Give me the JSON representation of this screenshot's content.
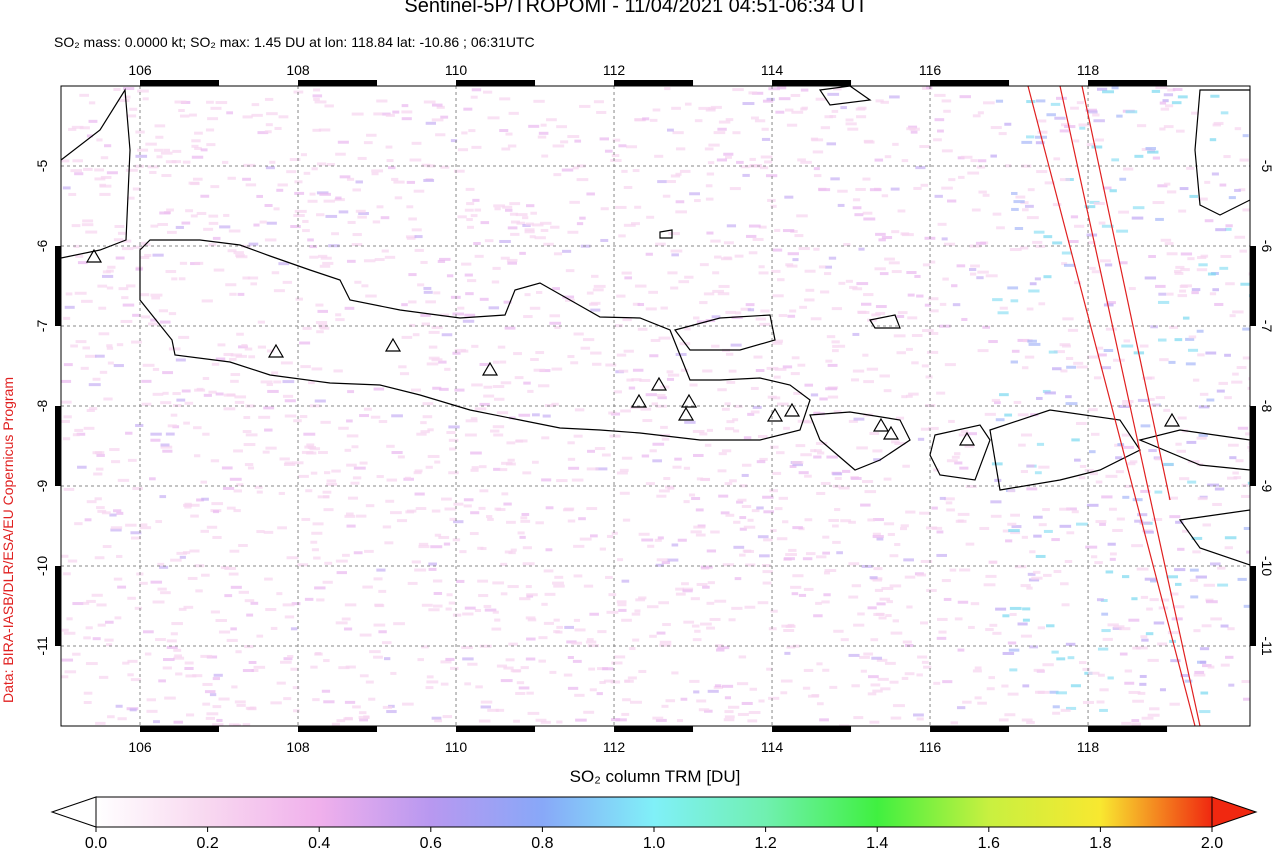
{
  "header": {
    "title": "Sentinel-5P/TROPOMI - 11/04/2021 04:51-06:34 UT",
    "subtitle": "SO₂ mass: 0.0000 kt; SO₂ max: 1.45 DU at lon: 118.84 lat: -10.86 ; 06:31UTC"
  },
  "credit": "Data: BIRA-IASB/DLR/ESA/EU Copernicus Program",
  "map": {
    "xlim": [
      105,
      120.05
    ],
    "ylim": [
      -12,
      -4
    ],
    "xticks": [
      106,
      108,
      110,
      112,
      114,
      116,
      118
    ],
    "yticks": [
      -5,
      -6,
      -7,
      -8,
      -9,
      -10,
      -11
    ]
  },
  "colorbar": {
    "label": "SO₂ column TRM [DU]",
    "lim": [
      0,
      2
    ],
    "ticks": [
      {
        "value": 0,
        "label": "0.0"
      },
      {
        "value": 0.2,
        "label": "0.2"
      },
      {
        "value": 0.4,
        "label": "0.4"
      },
      {
        "value": 0.6,
        "label": "0.6"
      },
      {
        "value": 0.8,
        "label": "0.8"
      },
      {
        "value": 1,
        "label": "1.0"
      },
      {
        "value": 1.2,
        "label": "1.2"
      },
      {
        "value": 1.4,
        "label": "1.4"
      },
      {
        "value": 1.6,
        "label": "1.6"
      },
      {
        "value": 1.8,
        "label": "1.8"
      },
      {
        "value": 2,
        "label": "2.0"
      }
    ]
  }
}
